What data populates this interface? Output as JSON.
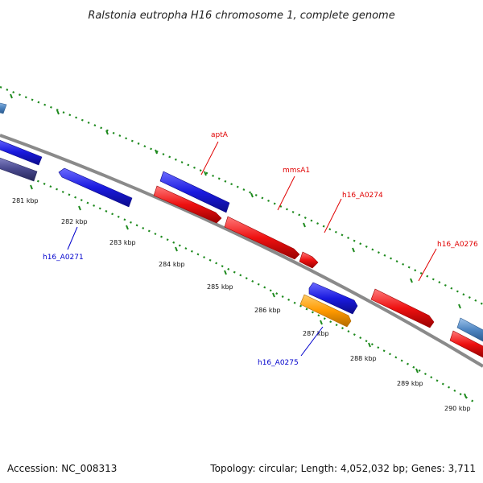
{
  "title": "Ralstonia eutropha H16 chromosome 1, complete genome",
  "footer": {
    "accession": "Accession: NC_008313",
    "summary": "Topology: circular; Length: 4,052,032 bp; Genes: 3,711"
  },
  "ticks": [
    "281 kbp",
    "282 kbp",
    "283 kbp",
    "284 kbp",
    "285 kbp",
    "286 kbp",
    "287 kbp",
    "288 kbp",
    "289 kbp",
    "290 kbp"
  ],
  "gene_labels": {
    "aptA": "aptA",
    "mmsA1": "mmsA1",
    "h16_A0274": "h16_A0274",
    "h16_A0276": "h16_A0276",
    "h16_A0271": "h16_A0271",
    "h16_A0275": "h16_A0275"
  },
  "colors": {
    "blue": "#1a1adf",
    "red": "#ee1111",
    "orange": "#ff9900",
    "steelblue": "#4f86c2",
    "slate": "#4a4a8f",
    "backbone": "#8a8a8a",
    "tickgreen": "#1e8a1e",
    "label_red": "#e00000",
    "label_blue": "#0000cc"
  }
}
